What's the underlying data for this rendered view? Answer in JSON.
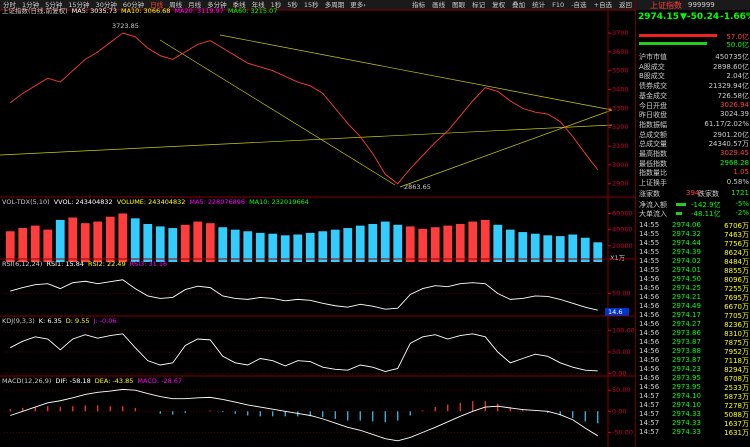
{
  "toolbar": {
    "tabs": [
      "分时",
      "1分钟",
      "5分钟",
      "15分钟",
      "30分钟",
      "60分钟",
      "日线",
      "周线",
      "月线",
      "多分钟",
      "季线",
      "年线",
      "1秒",
      "5秒",
      "15秒",
      "多周期",
      "更多›"
    ],
    "active": 6,
    "menu": [
      "指标",
      "画线",
      "图眼",
      "标记",
      "复权",
      "叠加",
      "统计",
      "F10",
      "-自选",
      "+自选",
      "返回"
    ]
  },
  "chart_data": [
    {
      "type": "line",
      "legend": [
        {
          "text": "上证指数(日线,前复权)",
          "color": "#ccc"
        },
        {
          "text": "MA5: 3035.73",
          "color": "#fff"
        },
        {
          "text": "MA10: 3066.68",
          "color": "#ff0"
        },
        {
          "text": "MA20: 3119.97",
          "color": "#f0f"
        },
        {
          "text": "MA60: 3215.07",
          "color": "#0f0"
        }
      ],
      "annotations": [
        "3723.85",
        "2863.65"
      ],
      "ylim": [
        2840,
        3780
      ],
      "yticks": [
        2900,
        3000,
        3100,
        3200,
        3300,
        3400,
        3500,
        3600,
        3700
      ],
      "series": [
        {
          "color": "#ff3d3d",
          "style": "line",
          "values": [
            3330,
            3380,
            3420,
            3460,
            3440,
            3500,
            3560,
            3600,
            3650,
            3700,
            3680,
            3620,
            3580,
            3560,
            3600,
            3640,
            3660,
            3620,
            3580,
            3540,
            3520,
            3500,
            3470,
            3440,
            3420,
            3380,
            3300,
            3220,
            3150,
            3060,
            2950,
            2900,
            2980,
            3050,
            3120,
            3180,
            3260,
            3340,
            3410,
            3390,
            3340,
            3300,
            3280,
            3270,
            3230,
            3150,
            3060,
            2974
          ]
        }
      ]
    },
    {
      "type": "bar",
      "legend": [
        {
          "text": "VOL-TDX(5,10)",
          "color": "#ccc"
        },
        {
          "text": "VVOL: 243404832",
          "color": "#fff"
        },
        {
          "text": "VOLUME: 243404832",
          "color": "#ff0"
        },
        {
          "text": "MA5: 228076896",
          "color": "#f0f"
        },
        {
          "text": "MA10: 232019664",
          "color": "#0f0"
        }
      ],
      "unit": "X1万",
      "ylim": [
        0,
        68000
      ],
      "yticks": [
        20000,
        40000,
        60000
      ],
      "colors": {
        "up": "#ff3d3d",
        "down": "#3cf"
      },
      "series": [
        {
          "style": "bar",
          "values": [
            38000,
            42000,
            45000,
            40000,
            52000,
            55000,
            48000,
            50000,
            56000,
            60000,
            54000,
            47000,
            44000,
            42000,
            46000,
            50000,
            48000,
            43000,
            40000,
            38000,
            36000,
            35000,
            33000,
            34000,
            36000,
            38000,
            40000,
            42000,
            45000,
            47000,
            50000,
            46000,
            44000,
            41000,
            43000,
            45000,
            47000,
            50000,
            52000,
            46000,
            40000,
            37000,
            35000,
            33000,
            32000,
            34000,
            30000,
            24340
          ]
        }
      ]
    },
    {
      "type": "line",
      "legend": [
        {
          "text": "RSI(6,12,24)",
          "color": "#ccc"
        },
        {
          "text": "RSI1: 15.84",
          "color": "#fff"
        },
        {
          "text": "RSI2: 22.49",
          "color": "#ff0"
        },
        {
          "text": "RSI3: 31.16",
          "color": "#f0f"
        }
      ],
      "current_label": "14.6",
      "ylim": [
        0,
        100
      ],
      "yticks": [
        {
          "value": 50,
          "label": "50.00"
        }
      ],
      "series": [
        {
          "color": "#fff",
          "style": "line",
          "values": [
            55,
            62,
            68,
            70,
            60,
            72,
            75,
            70,
            74,
            78,
            60,
            45,
            40,
            42,
            58,
            65,
            62,
            45,
            40,
            38,
            42,
            40,
            35,
            38,
            36,
            30,
            25,
            22,
            28,
            24,
            18,
            20,
            48,
            60,
            66,
            64,
            70,
            72,
            70,
            50,
            38,
            40,
            45,
            44,
            38,
            30,
            22,
            15.84
          ]
        }
      ]
    },
    {
      "type": "line",
      "legend": [
        {
          "text": "KDJ(9,3,3)",
          "color": "#ccc"
        },
        {
          "text": "K: 6.35",
          "color": "#fff"
        },
        {
          "text": "D: 9.55",
          "color": "#ff0"
        },
        {
          "text": "J: -0.06",
          "color": "#f0f"
        }
      ],
      "ylim": [
        -10,
        110
      ],
      "yticks": [
        {
          "value": 0,
          "label": "0.00"
        },
        {
          "value": 50,
          "label": "50.00"
        },
        {
          "value": 100,
          "label": "100.00"
        }
      ],
      "series": [
        {
          "color": "#fff",
          "style": "line",
          "values": [
            60,
            75,
            85,
            80,
            55,
            80,
            90,
            82,
            88,
            92,
            60,
            30,
            20,
            25,
            65,
            80,
            78,
            40,
            25,
            20,
            35,
            30,
            18,
            30,
            28,
            15,
            10,
            8,
            20,
            15,
            5,
            12,
            70,
            85,
            90,
            80,
            88,
            92,
            85,
            50,
            25,
            35,
            45,
            40,
            25,
            15,
            8,
            6.35
          ]
        }
      ]
    },
    {
      "type": "line",
      "legend": [
        {
          "text": "MACD(12,26,9)",
          "color": "#ccc"
        },
        {
          "text": "DIF: -58.18",
          "color": "#fff"
        },
        {
          "text": "DEA: -43.85",
          "color": "#ff0"
        },
        {
          "text": "MACD: -28.67",
          "color": "#f0f"
        }
      ],
      "ylim": [
        -80,
        60
      ],
      "yticks": [
        {
          "value": -50,
          "label": "-50.00"
        },
        {
          "value": 0,
          "label": "0.00"
        },
        {
          "value": 50,
          "label": "50.00"
        }
      ],
      "colors": {
        "up": "#ff3d3d",
        "down": "#3cf"
      },
      "series": [
        {
          "style": "bar",
          "values": [
            5,
            8,
            10,
            12,
            10,
            12,
            14,
            14,
            12,
            12,
            8,
            0,
            -6,
            -8,
            -4,
            0,
            2,
            -2,
            -6,
            -10,
            -12,
            -12,
            -12,
            -12,
            -12,
            -14,
            -18,
            -22,
            -22,
            -24,
            -26,
            -22,
            -10,
            2,
            10,
            16,
            20,
            24,
            24,
            18,
            10,
            4,
            0,
            -4,
            -10,
            -16,
            -24,
            -28.67
          ]
        },
        {
          "color": "#fff",
          "style": "line",
          "values": [
            -10,
            0,
            10,
            20,
            25,
            32,
            40,
            45,
            48,
            52,
            50,
            42,
            35,
            30,
            30,
            32,
            33,
            28,
            22,
            15,
            10,
            5,
            0,
            -5,
            -10,
            -18,
            -28,
            -38,
            -45,
            -55,
            -65,
            -70,
            -62,
            -50,
            -38,
            -25,
            -12,
            0,
            10,
            12,
            8,
            4,
            2,
            0,
            -8,
            -20,
            -40,
            -58.18
          ]
        }
      ]
    }
  ],
  "quote": {
    "title": "上证指数",
    "code": "999999",
    "price": "2974.15",
    "change": "▼-50.24",
    "pct": "-1.66%",
    "flows": [
      "57.0亿",
      "50.0亿"
    ],
    "stats": [
      {
        "label": "沪市市值",
        "value": "450735亿",
        "color": "#ccc"
      },
      {
        "label": "A股成交",
        "value": "2898.60亿",
        "color": "#ccc"
      },
      {
        "label": "B股成交",
        "value": "2.04亿",
        "color": "#ccc"
      },
      {
        "label": "债券成交",
        "value": "21329.94亿",
        "color": "#ccc"
      },
      {
        "label": "基金成交",
        "value": "726.58亿",
        "color": "#ccc"
      },
      {
        "label": "今日开盘",
        "value": "3026.94",
        "color": "#ff3d3d"
      },
      {
        "label": "昨日收盘",
        "value": "3024.39",
        "color": "#ccc"
      },
      {
        "label": "指数振幅",
        "value": "61.17/2.02%",
        "color": "#ccc"
      },
      {
        "label": "总成交额",
        "value": "2901.20亿",
        "color": "#ccc"
      },
      {
        "label": "总成交量",
        "value": "24340.57万",
        "color": "#ccc"
      },
      {
        "label": "最高指数",
        "value": "3029.45",
        "color": "#ff3d3d"
      },
      {
        "label": "最低指数",
        "value": "2968.28",
        "color": "#0f0"
      },
      {
        "label": "指数量比",
        "value": "1.05",
        "color": "#ff3d3d"
      },
      {
        "label": "上证换手",
        "value": "0.58%",
        "color": "#ccc"
      }
    ],
    "updown": [
      "涨家数",
      "394",
      "跌家数",
      "1721"
    ],
    "inflow": [
      [
        "净流入额",
        "-142.9亿",
        "-5%"
      ],
      [
        "大单流入",
        "-48.11亿",
        "-2%"
      ]
    ],
    "trades": [
      [
        "14:55",
        "2974.06",
        "6706万"
      ],
      [
        "14:55",
        "2974.32",
        "7463万"
      ],
      [
        "14:55",
        "2974.44",
        "7756万"
      ],
      [
        "14:55",
        "2974.39",
        "8624万"
      ],
      [
        "14:55",
        "2974.02",
        "8484万"
      ],
      [
        "14:55",
        "2974.01",
        "8855万"
      ],
      [
        "14:56",
        "2974.50",
        "8096万"
      ],
      [
        "14:56",
        "2974.25",
        "7255万"
      ],
      [
        "14:56",
        "2974.21",
        "7695万"
      ],
      [
        "14:56",
        "2974.49",
        "6670万"
      ],
      [
        "14:56",
        "2974.17",
        "7705万"
      ],
      [
        "14:56",
        "2974.27",
        "8236万"
      ],
      [
        "14:56",
        "2973.86",
        "8310万"
      ],
      [
        "14:56",
        "2973.87",
        "7875万"
      ],
      [
        "14:56",
        "2973.88",
        "7952万"
      ],
      [
        "14:56",
        "2973.87",
        "7118万"
      ],
      [
        "14:56",
        "2974.23",
        "8294万"
      ],
      [
        "14:56",
        "2973.95",
        "6708万"
      ],
      [
        "14:56",
        "2973.95",
        "2533万"
      ],
      [
        "14:57",
        "2974.10",
        "5873万"
      ],
      [
        "14:57",
        "2974.10",
        "7278万"
      ],
      [
        "14:57",
        "2974.33",
        "5088万"
      ],
      [
        "14:57",
        "2974.33",
        "1637万"
      ],
      [
        "14:57",
        "2974.33",
        "1631万"
      ]
    ]
  }
}
